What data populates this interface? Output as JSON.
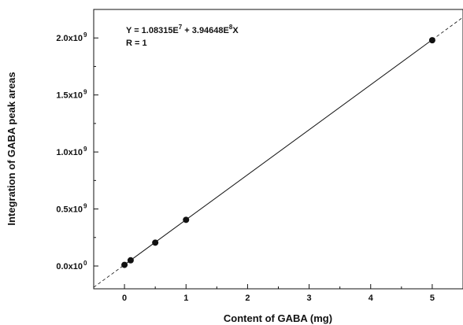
{
  "chart_data": {
    "type": "scatter",
    "xlabel": "Content of GABA (mg)",
    "ylabel": "Integration of GABA peak areas",
    "xlim": [
      -0.5,
      5.5
    ],
    "ylim": [
      -0.2,
      2.25
    ],
    "x_ticks": [
      {
        "value": 0,
        "label": "0"
      },
      {
        "value": 1,
        "label": "1"
      },
      {
        "value": 2,
        "label": "2"
      },
      {
        "value": 3,
        "label": "3"
      },
      {
        "value": 4,
        "label": "4"
      },
      {
        "value": 5,
        "label": "5"
      }
    ],
    "y_ticks": [
      {
        "value": 0.0,
        "mantissa": "0.0x10",
        "exp": "0"
      },
      {
        "value": 0.5,
        "mantissa": "0.5x10",
        "exp": "9"
      },
      {
        "value": 1.0,
        "mantissa": "1.0x10",
        "exp": "9"
      },
      {
        "value": 1.5,
        "mantissa": "1.5x10",
        "exp": "9"
      },
      {
        "value": 2.0,
        "mantissa": "2.0x10",
        "exp": "9"
      }
    ],
    "y_units_scale": "x10^9",
    "series": [
      {
        "points": [
          {
            "x": 0.0,
            "y": 0.01
          },
          {
            "x": 0.1,
            "y": 0.05
          },
          {
            "x": 0.5,
            "y": 0.205
          },
          {
            "x": 1.0,
            "y": 0.405
          },
          {
            "x": 5.0,
            "y": 1.98
          }
        ]
      }
    ],
    "fit": {
      "intercept": 0.0108315,
      "slope": 0.394648,
      "equation_main": "Y = 1.08315E",
      "equation_exp1": "7",
      "equation_mid": " + 3.94648E",
      "equation_exp2": "8",
      "equation_end": "X",
      "r_label": "R = 1"
    },
    "grid": false,
    "legend": "none"
  }
}
